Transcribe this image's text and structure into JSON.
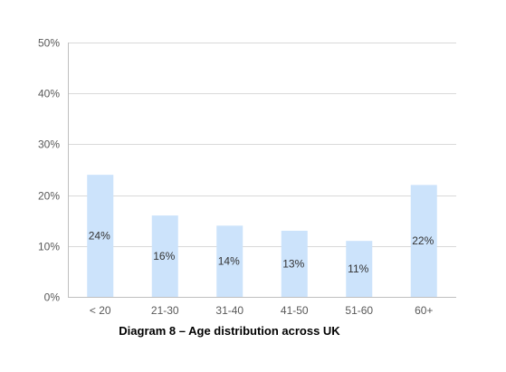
{
  "chart_data": {
    "type": "bar",
    "title": "Diagram 8 – Age distribution across UK",
    "categories": [
      "< 20",
      "21-30",
      "31-40",
      "41-50",
      "51-60",
      "60+"
    ],
    "values": [
      24,
      16,
      14,
      13,
      11,
      22
    ],
    "data_labels": [
      "24%",
      "16%",
      "14%",
      "13%",
      "11%",
      "22%"
    ],
    "yticks": [
      "0%",
      "10%",
      "20%",
      "30%",
      "40%",
      "50%"
    ],
    "ylim": [
      0,
      50
    ],
    "grid": true,
    "legend": "none",
    "colors": {
      "bar": "#cce3fb",
      "grid": "#d9d9d9",
      "axis": "#bfbfbf"
    }
  }
}
